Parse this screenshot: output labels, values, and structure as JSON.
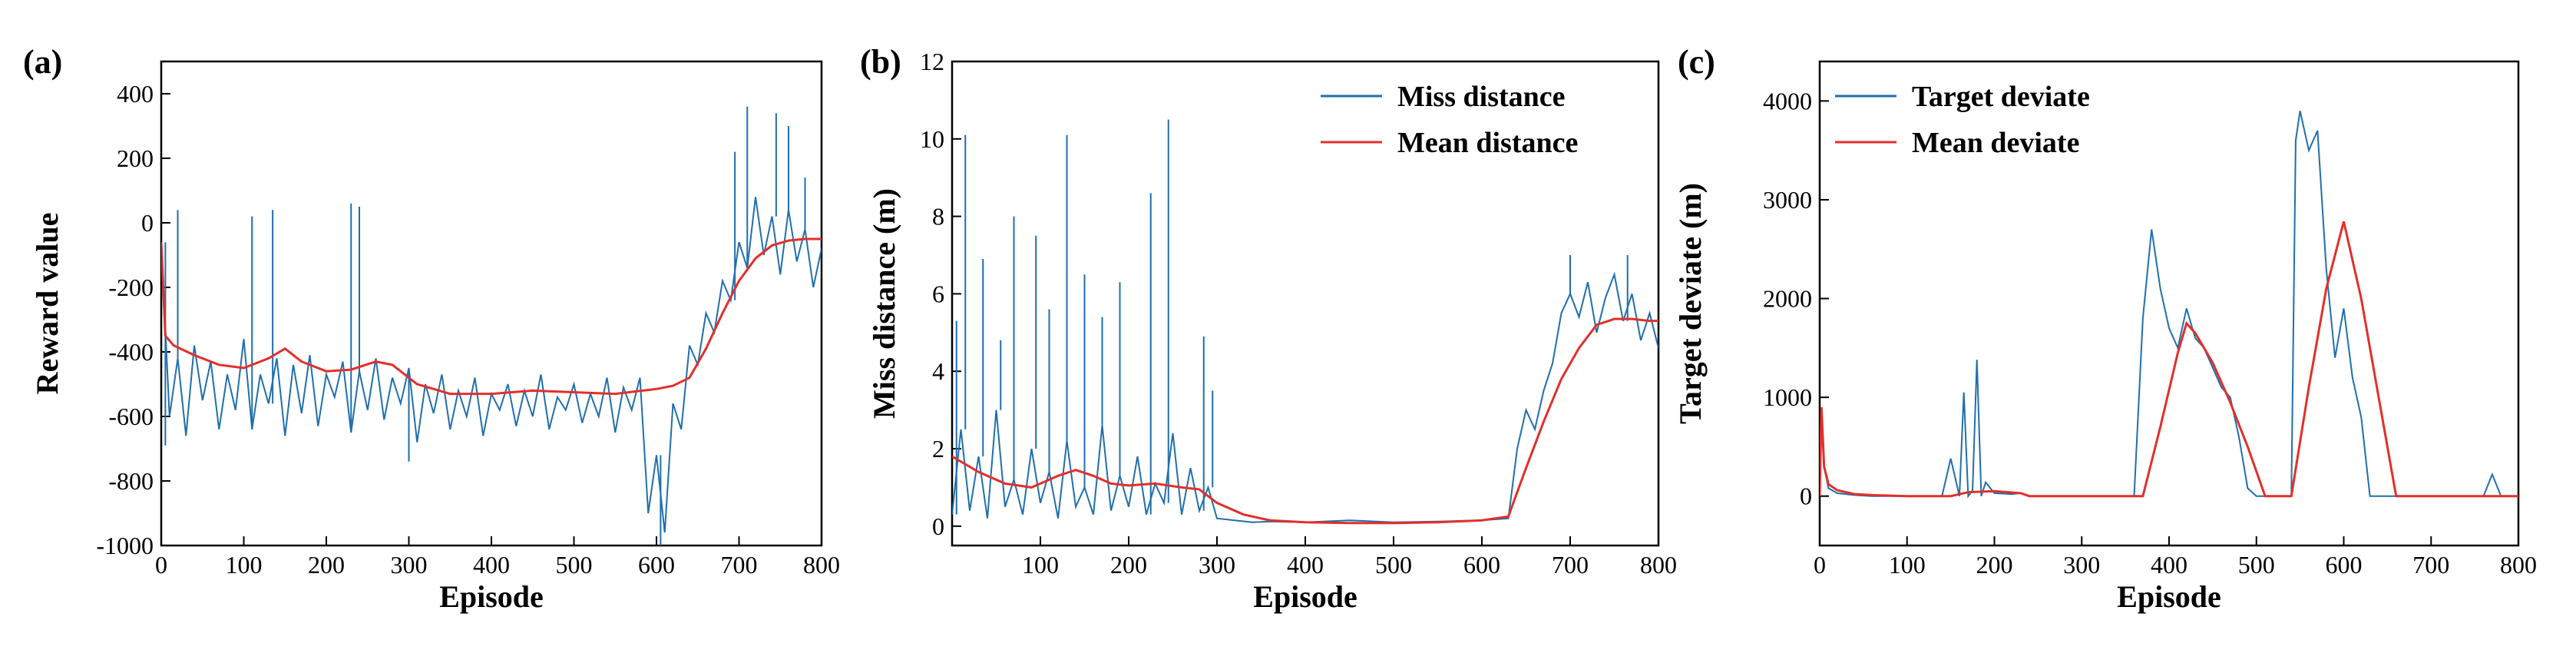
{
  "colors": {
    "noisy": "#1f6fad",
    "mean": "#e0302c",
    "axis": "#000000"
  },
  "chart_data": [
    {
      "type": "line",
      "panel_label": "(a)",
      "xlabel": "Episode",
      "ylabel": "Reward value",
      "xlim": [
        0,
        800
      ],
      "ylim": [
        -1000,
        500
      ],
      "xticks": [
        0,
        100,
        200,
        300,
        400,
        500,
        600,
        700,
        800
      ],
      "yticks": [
        -1000,
        -800,
        -600,
        -400,
        -200,
        0,
        200,
        400
      ],
      "xtick_labels": [
        "0",
        "100",
        "200",
        "300",
        "400",
        "500",
        "600",
        "700",
        "800"
      ],
      "ytick_labels": [
        "-1000",
        "-800",
        "-600",
        "-400",
        "-200",
        "0",
        "200",
        "400"
      ],
      "legend": null,
      "series": [
        {
          "role": "noisy",
          "x": [
            0,
            10,
            20,
            30,
            40,
            50,
            60,
            70,
            80,
            90,
            100,
            110,
            120,
            130,
            140,
            150,
            160,
            170,
            180,
            190,
            200,
            210,
            220,
            230,
            240,
            250,
            260,
            270,
            280,
            290,
            300,
            310,
            320,
            330,
            340,
            350,
            360,
            370,
            380,
            390,
            400,
            410,
            420,
            430,
            440,
            450,
            460,
            470,
            480,
            490,
            500,
            510,
            520,
            530,
            540,
            550,
            560,
            570,
            580,
            590,
            600,
            610,
            620,
            630,
            640,
            650,
            660,
            670,
            680,
            690,
            700,
            710,
            720,
            730,
            740,
            750,
            760,
            770,
            780,
            790,
            800
          ],
          "y": [
            -60,
            -600,
            -420,
            -660,
            -380,
            -550,
            -430,
            -640,
            -470,
            -580,
            -360,
            -640,
            -470,
            -560,
            -420,
            -660,
            -440,
            -590,
            -410,
            -630,
            -470,
            -540,
            -430,
            -650,
            -460,
            -580,
            -420,
            -610,
            -480,
            -560,
            -450,
            -680,
            -500,
            -590,
            -470,
            -640,
            -520,
            -600,
            -480,
            -660,
            -530,
            -580,
            -500,
            -630,
            -520,
            -600,
            -470,
            -640,
            -540,
            -580,
            -500,
            -620,
            -530,
            -600,
            -480,
            -650,
            -510,
            -580,
            -480,
            -900,
            -720,
            -960,
            -560,
            -640,
            -380,
            -440,
            -280,
            -340,
            -180,
            -240,
            -60,
            -140,
            80,
            -100,
            20,
            -160,
            40,
            -120,
            -20,
            -200,
            -80
          ],
          "spikes": [
            [
              5,
              -690
            ],
            [
              20,
              40
            ],
            [
              110,
              20
            ],
            [
              135,
              40
            ],
            [
              230,
              60
            ],
            [
              240,
              50
            ],
            [
              300,
              -740
            ],
            [
              605,
              -1000
            ],
            [
              695,
              220
            ],
            [
              710,
              360
            ],
            [
              745,
              340
            ],
            [
              760,
              300
            ],
            [
              780,
              140
            ]
          ]
        },
        {
          "role": "mean",
          "x": [
            0,
            5,
            15,
            40,
            70,
            100,
            130,
            150,
            170,
            200,
            230,
            260,
            280,
            310,
            350,
            400,
            450,
            500,
            550,
            600,
            620,
            640,
            660,
            680,
            700,
            720,
            740,
            760,
            780,
            800
          ],
          "y": [
            -60,
            -350,
            -380,
            -410,
            -440,
            -450,
            -420,
            -390,
            -430,
            -460,
            -455,
            -430,
            -440,
            -500,
            -530,
            -530,
            -520,
            -525,
            -530,
            -515,
            -505,
            -480,
            -390,
            -280,
            -180,
            -110,
            -70,
            -55,
            -50,
            -50
          ]
        }
      ]
    },
    {
      "type": "line",
      "panel_label": "(b)",
      "xlabel": "Episode",
      "ylabel": "Miss distance (m)",
      "xlim": [
        0,
        800
      ],
      "ylim": [
        -0.5,
        12
      ],
      "xticks": [
        100,
        200,
        300,
        400,
        500,
        600,
        700,
        800
      ],
      "yticks": [
        0,
        2,
        4,
        6,
        8,
        10,
        12
      ],
      "xtick_labels": [
        "100",
        "200",
        "300",
        "400",
        "500",
        "600",
        "700",
        "800"
      ],
      "ytick_labels": [
        "0",
        "2",
        "4",
        "6",
        "8",
        "10",
        "12"
      ],
      "legend": [
        "Miss distance",
        "Mean distance"
      ],
      "series": [
        {
          "name": "Miss distance",
          "role": "noisy",
          "x": [
            0,
            10,
            20,
            30,
            40,
            50,
            60,
            70,
            80,
            90,
            100,
            110,
            120,
            130,
            140,
            150,
            160,
            170,
            180,
            190,
            200,
            210,
            220,
            230,
            240,
            250,
            260,
            270,
            280,
            290,
            300,
            320,
            340,
            360,
            400,
            450,
            500,
            550,
            600,
            630,
            640,
            650,
            660,
            670,
            680,
            690,
            700,
            710,
            720,
            730,
            740,
            750,
            760,
            770,
            780,
            790,
            800
          ],
          "y": [
            0.3,
            2.5,
            0.4,
            1.8,
            0.2,
            3.0,
            0.5,
            1.2,
            0.3,
            2.0,
            0.6,
            1.4,
            0.2,
            2.2,
            0.5,
            1.0,
            0.3,
            2.6,
            0.4,
            1.3,
            0.5,
            1.8,
            0.3,
            1.1,
            0.6,
            2.4,
            0.3,
            1.5,
            0.4,
            1.0,
            0.2,
            0.15,
            0.1,
            0.12,
            0.1,
            0.15,
            0.1,
            0.12,
            0.15,
            0.2,
            2.0,
            3.0,
            2.5,
            3.5,
            4.2,
            5.5,
            6.0,
            5.4,
            6.3,
            5.0,
            5.9,
            6.5,
            5.3,
            6.0,
            4.8,
            5.5,
            4.6
          ],
          "spikes": [
            [
              5,
              5.3
            ],
            [
              15,
              10.1
            ],
            [
              35,
              6.9
            ],
            [
              55,
              4.8
            ],
            [
              70,
              8.0
            ],
            [
              95,
              7.5
            ],
            [
              110,
              5.6
            ],
            [
              130,
              10.1
            ],
            [
              150,
              6.5
            ],
            [
              170,
              5.4
            ],
            [
              190,
              6.3
            ],
            [
              225,
              8.6
            ],
            [
              245,
              10.5
            ],
            [
              285,
              4.9
            ],
            [
              295,
              3.5
            ],
            [
              700,
              7.0
            ],
            [
              765,
              7.0
            ]
          ]
        },
        {
          "name": "Mean distance",
          "role": "mean",
          "x": [
            0,
            30,
            60,
            90,
            120,
            140,
            160,
            180,
            200,
            230,
            260,
            280,
            300,
            330,
            360,
            400,
            450,
            500,
            550,
            600,
            630,
            650,
            670,
            690,
            710,
            730,
            750,
            770,
            790,
            800
          ],
          "y": [
            1.8,
            1.4,
            1.1,
            1.0,
            1.3,
            1.45,
            1.3,
            1.1,
            1.05,
            1.1,
            1.0,
            0.95,
            0.6,
            0.3,
            0.15,
            0.1,
            0.08,
            0.08,
            0.1,
            0.15,
            0.25,
            1.5,
            2.7,
            3.8,
            4.6,
            5.2,
            5.35,
            5.35,
            5.3,
            5.3
          ]
        }
      ]
    },
    {
      "type": "line",
      "panel_label": "(c)",
      "xlabel": "Episode",
      "ylabel": "Target deviate (m)",
      "xlim": [
        0,
        800
      ],
      "ylim": [
        -500,
        4400
      ],
      "xticks": [
        0,
        100,
        200,
        300,
        400,
        500,
        600,
        700,
        800
      ],
      "yticks": [
        0,
        1000,
        2000,
        3000,
        4000
      ],
      "xtick_labels": [
        "0",
        "100",
        "200",
        "300",
        "400",
        "500",
        "600",
        "700",
        "800"
      ],
      "ytick_labels": [
        "0",
        "1000",
        "2000",
        "3000",
        "4000"
      ],
      "legend": [
        "Target deviate",
        "Mean deviate"
      ],
      "series": [
        {
          "name": "Target deviate",
          "role": "noisy",
          "x": [
            0,
            2,
            5,
            10,
            20,
            40,
            60,
            80,
            100,
            140,
            150,
            160,
            165,
            170,
            175,
            180,
            185,
            190,
            200,
            220,
            230,
            240,
            280,
            360,
            370,
            380,
            390,
            400,
            410,
            420,
            430,
            440,
            450,
            460,
            470,
            480,
            490,
            500,
            520,
            540,
            545,
            550,
            560,
            570,
            580,
            590,
            600,
            610,
            620,
            630,
            640,
            660,
            700,
            760,
            770,
            780,
            800
          ],
          "y": [
            0,
            900,
            300,
            80,
            30,
            10,
            0,
            0,
            0,
            0,
            380,
            0,
            1050,
            0,
            60,
            1380,
            0,
            140,
            30,
            20,
            30,
            0,
            0,
            0,
            1800,
            2700,
            2100,
            1700,
            1500,
            1900,
            1600,
            1500,
            1300,
            1100,
            1000,
            600,
            80,
            0,
            0,
            0,
            3600,
            3900,
            3500,
            3700,
            2300,
            1400,
            1900,
            1200,
            800,
            0,
            0,
            0,
            0,
            0,
            220,
            0,
            0
          ]
        },
        {
          "name": "Mean deviate",
          "role": "mean",
          "x": [
            0,
            2,
            5,
            10,
            20,
            40,
            60,
            100,
            150,
            170,
            200,
            230,
            240,
            370,
            390,
            410,
            420,
            430,
            450,
            470,
            490,
            510,
            525,
            540,
            560,
            580,
            600,
            620,
            640,
            660,
            700,
            800
          ],
          "y": [
            0,
            900,
            300,
            120,
            60,
            20,
            10,
            0,
            0,
            40,
            50,
            30,
            0,
            0,
            700,
            1450,
            1750,
            1650,
            1350,
            950,
            500,
            0,
            0,
            0,
            1100,
            2100,
            2780,
            2000,
            1000,
            0,
            0,
            0
          ]
        }
      ]
    }
  ]
}
